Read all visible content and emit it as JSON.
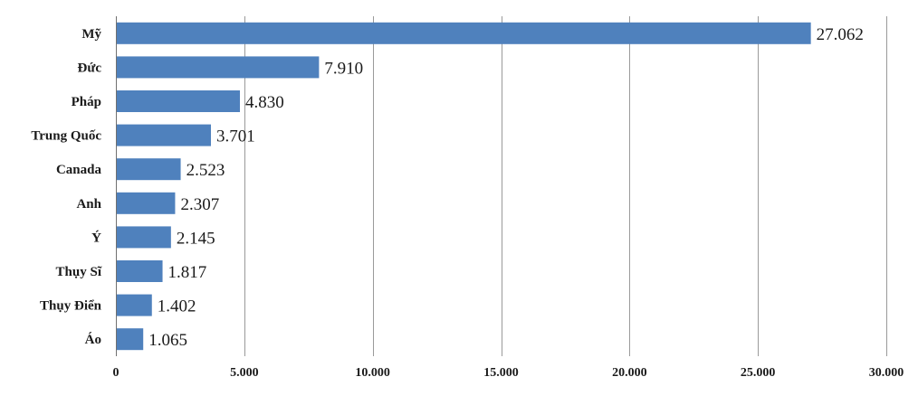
{
  "chart_data": {
    "type": "bar",
    "orientation": "horizontal",
    "title": "",
    "xlabel": "",
    "ylabel": "",
    "categories": [
      "Mỹ",
      "Đức",
      "Pháp",
      "Trung Quốc",
      "Canada",
      "Anh",
      "Ý",
      "Thụy Sĩ",
      "Thụy Điển",
      "Áo"
    ],
    "values": [
      27062,
      7910,
      4830,
      3701,
      2523,
      2307,
      2145,
      1817,
      1402,
      1065
    ],
    "data_labels": [
      "27.062",
      "7.910",
      "4.830",
      "3.701",
      "2.523",
      "2.307",
      "2.145",
      "1.817",
      "1.402",
      "1.065"
    ],
    "xlim": [
      0,
      30000
    ],
    "ticks": [
      0,
      5000,
      10000,
      15000,
      20000,
      25000,
      30000
    ],
    "tick_labels": [
      "0",
      "5.000",
      "10.000",
      "15.000",
      "20.000",
      "25.000",
      "30.000"
    ],
    "grid": true,
    "legend": "none",
    "bar_color": "#4f81bd"
  }
}
